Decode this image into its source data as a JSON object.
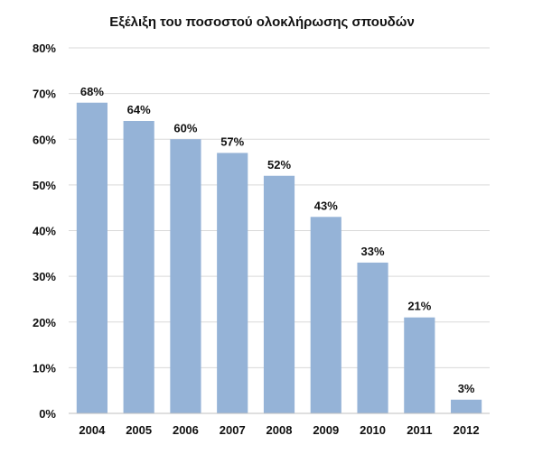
{
  "chart_data": {
    "type": "bar",
    "title": "Εξέλιξη του ποσοστού ολοκλήρωσης σπουδών",
    "xlabel": "",
    "ylabel": "",
    "categories": [
      "2004",
      "2005",
      "2006",
      "2007",
      "2008",
      "2009",
      "2010",
      "2011",
      "2012"
    ],
    "values": [
      68,
      64,
      60,
      57,
      52,
      43,
      33,
      21,
      3
    ],
    "data_labels": [
      "68%",
      "64%",
      "60%",
      "57%",
      "52%",
      "43%",
      "33%",
      "21%",
      "3%"
    ],
    "ylim": [
      0,
      80
    ],
    "y_ticks": [
      "0%",
      "10%",
      "20%",
      "30%",
      "40%",
      "50%",
      "60%",
      "70%",
      "80%"
    ],
    "grid": true,
    "legend": "none",
    "bar_color": "#95b3d7"
  }
}
